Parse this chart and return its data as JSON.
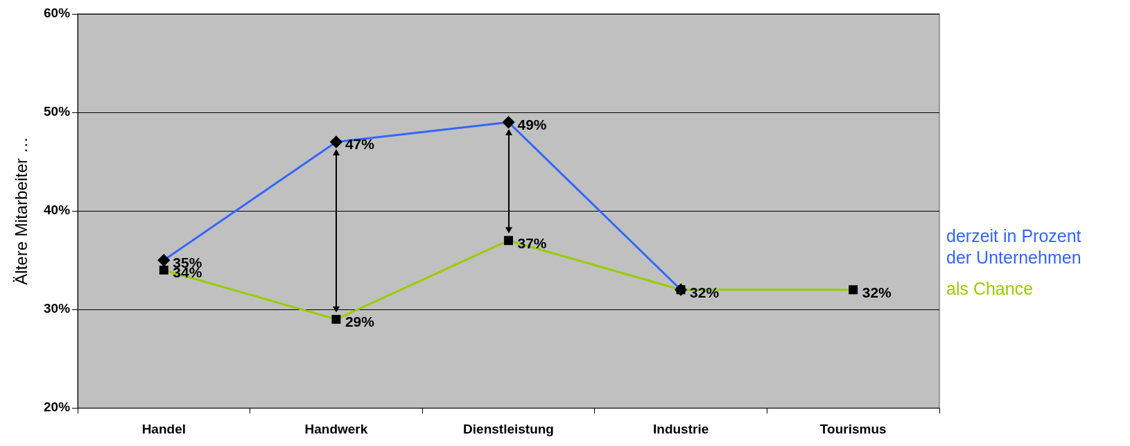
{
  "chart_data": {
    "type": "line",
    "ylabel": "Ältere Mitarbeiter …",
    "categories": [
      "Handel",
      "Handwerk",
      "Dienstleistung",
      "Industrie",
      "Tourismus"
    ],
    "ylim": [
      0.2,
      0.6
    ],
    "yticks": [
      {
        "value": 0.2,
        "label": "20%"
      },
      {
        "value": 0.3,
        "label": "30%"
      },
      {
        "value": 0.4,
        "label": "40%"
      },
      {
        "value": 0.5,
        "label": "50%"
      },
      {
        "value": 0.6,
        "label": "60%"
      }
    ],
    "series": [
      {
        "name": "derzeit in Prozent der Unternehmen",
        "color": "#3366ff",
        "marker": "diamond",
        "values": [
          0.35,
          0.47,
          0.49,
          0.32,
          null
        ],
        "value_labels": [
          "35%",
          "47%",
          "49%",
          null,
          null
        ]
      },
      {
        "name": "als Chance",
        "color": "#99cc00",
        "marker": "square",
        "values": [
          0.34,
          0.29,
          0.37,
          0.32,
          0.32
        ],
        "value_labels": [
          "34%",
          "29%",
          "37%",
          "32%",
          "32%"
        ]
      }
    ],
    "grid": "y",
    "legend": "right",
    "line_style": "solid"
  }
}
